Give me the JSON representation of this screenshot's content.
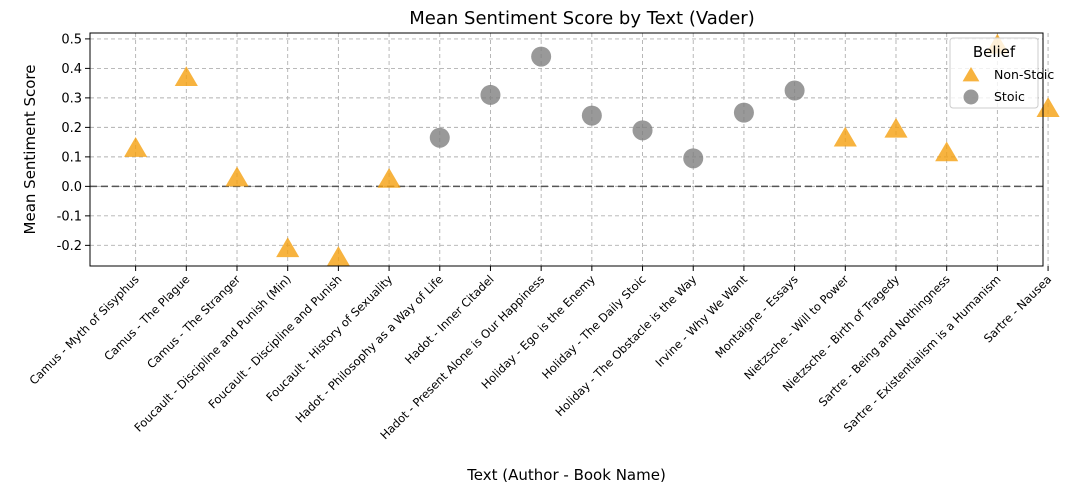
{
  "chart_data": {
    "type": "scatter",
    "title": "Mean Sentiment Score by Text (Vader)",
    "xlabel": "Text (Author - Book Name)",
    "ylabel": "Mean Sentiment Score",
    "ylim": [
      -0.27,
      0.52
    ],
    "yticks": [
      "-0.2",
      "-0.1",
      "0.0",
      "0.1",
      "0.2",
      "0.3",
      "0.4",
      "0.5"
    ],
    "reference_line_y": 0,
    "grid": true,
    "legend": {
      "title": "Belief",
      "placement": "top-right",
      "entries": [
        {
          "name": "Non-Stoic",
          "marker": "triangle",
          "color": "#f5a00f"
        },
        {
          "name": "Stoic",
          "marker": "circle",
          "color": "#808080"
        }
      ]
    },
    "categories": [
      "Camus - Myth of Sisyphus",
      "Camus - The Plague",
      "Camus - The Stranger",
      "Foucault - Discipline and Punish (Min)",
      "Foucault - Discipline and Punish",
      "Foucault - History of Sexuality",
      "Hadot - Philosophy as a Way of Life",
      "Hadot - Inner Citadel",
      "Hadot - Present Alone is Our Happiness",
      "Holiday - Ego is the Enemy",
      "Holiday - The Daily Stoic",
      "Holiday - The Obstacle is the Way",
      "Irvine - Why We Want",
      "Montaigne - Essays",
      "Nietzsche - Will to Power",
      "Nietzsche - Birth of Tragedy",
      "Sartre - Being and Nothingness",
      "Sartre - Existentialism is a Humanism",
      "Sartre - Nausea"
    ],
    "series": [
      {
        "name": "Non-Stoic",
        "points": [
          {
            "x": "Camus - Myth of Sisyphus",
            "y": 0.13
          },
          {
            "x": "Camus - The Plague",
            "y": 0.37
          },
          {
            "x": "Camus - The Stranger",
            "y": 0.03
          },
          {
            "x": "Foucault - Discipline and Punish (Min)",
            "y": -0.21
          },
          {
            "x": "Foucault - Discipline and Punish",
            "y": -0.24
          },
          {
            "x": "Foucault - History of Sexuality",
            "y": 0.025
          },
          {
            "x": "Nietzsche - Will to Power",
            "y": 0.165
          },
          {
            "x": "Nietzsche - Birth of Tragedy",
            "y": 0.195
          },
          {
            "x": "Sartre - Being and Nothingness",
            "y": 0.115
          },
          {
            "x": "Sartre - Existentialism is a Humanism",
            "y": 0.48
          },
          {
            "x": "Sartre - Nausea",
            "y": 0.265
          }
        ]
      },
      {
        "name": "Stoic",
        "points": [
          {
            "x": "Hadot - Philosophy as a Way of Life",
            "y": 0.165
          },
          {
            "x": "Hadot - Inner Citadel",
            "y": 0.31
          },
          {
            "x": "Hadot - Present Alone is Our Happiness",
            "y": 0.44
          },
          {
            "x": "Holiday - Ego is the Enemy",
            "y": 0.24
          },
          {
            "x": "Holiday - The Daily Stoic",
            "y": 0.19
          },
          {
            "x": "Holiday - The Obstacle is the Way",
            "y": 0.095
          },
          {
            "x": "Irvine - Why We Want",
            "y": 0.25
          },
          {
            "x": "Montaigne - Essays",
            "y": 0.325
          }
        ]
      }
    ]
  }
}
